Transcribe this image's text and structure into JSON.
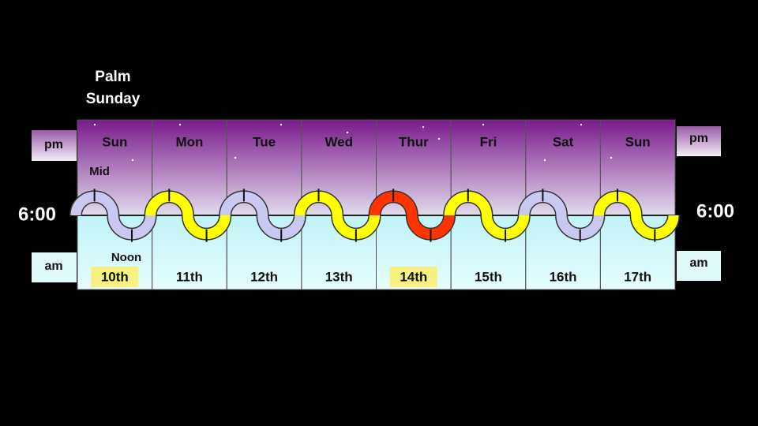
{
  "title_lines": [
    "Palm",
    "Sunday"
  ],
  "left": {
    "pm": "pm",
    "am": "am",
    "time": "6:00"
  },
  "right": {
    "pm": "pm",
    "am": "am",
    "time": "6:00"
  },
  "markers": {
    "top": "Mid",
    "bottom": "Noon"
  },
  "days": [
    {
      "name": "Sun",
      "date": "10th",
      "color": "#c8c8f0",
      "highlight": true
    },
    {
      "name": "Mon",
      "date": "11th",
      "color": "#ffff00",
      "highlight": false
    },
    {
      "name": "Tue",
      "date": "12th",
      "color": "#c8c8f0",
      "highlight": false
    },
    {
      "name": "Wed",
      "date": "13th",
      "color": "#ffff00",
      "highlight": false
    },
    {
      "name": "Thur",
      "date": "14th",
      "color": "#ff3300",
      "highlight": true
    },
    {
      "name": "Fri",
      "date": "15th",
      "color": "#ffff00",
      "highlight": false
    },
    {
      "name": "Sat",
      "date": "16th",
      "color": "#c8c8f0",
      "highlight": false
    },
    {
      "name": "Sun",
      "date": "17th",
      "color": "#ffff00",
      "highlight": false
    }
  ]
}
